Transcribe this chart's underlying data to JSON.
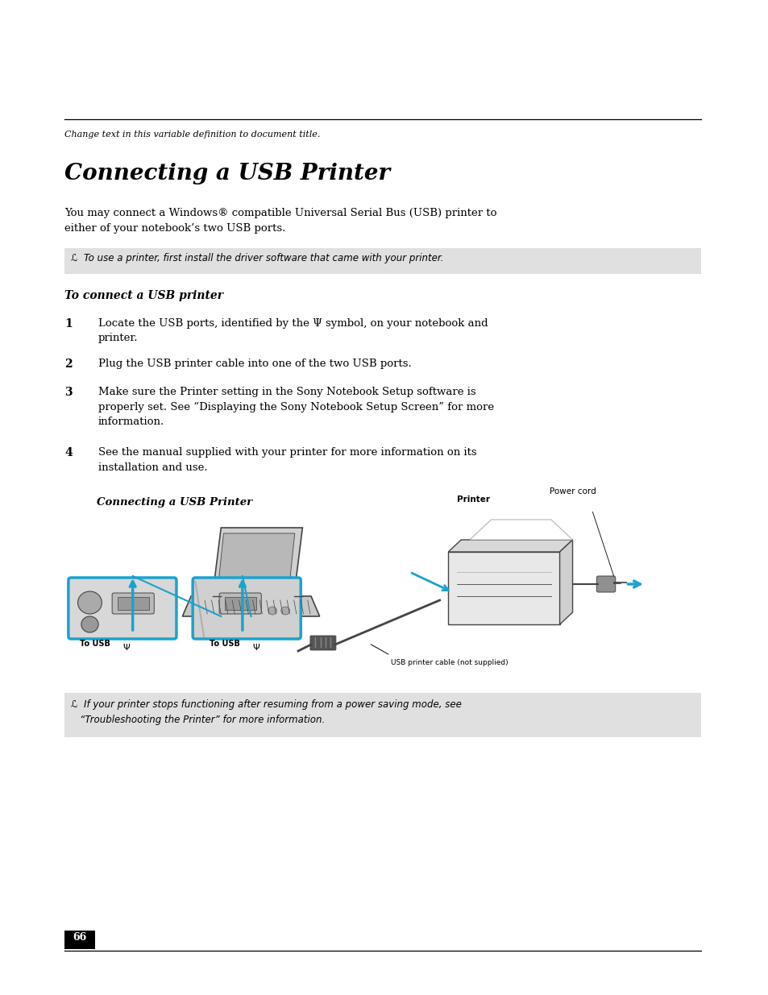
{
  "bg_color": "#ffffff",
  "header_italic_text": "Change text in this variable definition to document title.",
  "title": "Connecting a USB Printer",
  "body_text1": "You may connect a Windows® compatible Universal Serial Bus (USB) printer to\neither of your notebook’s two USB ports.",
  "note_box1_text": "ℒ  To use a printer, first install the driver software that came with your printer.",
  "note_box1_bg": "#e0e0e0",
  "subhead_text": "To connect a USB printer",
  "step1_num": "1",
  "step1_text": "Locate the USB ports, identified by the Ψ symbol, on your notebook and\nprinter.",
  "step2_num": "2",
  "step2_text": "Plug the USB printer cable into one of the two USB ports.",
  "step3_num": "3",
  "step3_text": "Make sure the Printer setting in the Sony Notebook Setup software is\nproperly set. See “Displaying the Sony Notebook Setup Screen” for more\ninformation.",
  "step4_num": "4",
  "step4_text": "See the manual supplied with your printer for more information on its\ninstallation and use.",
  "diagram_caption": "Connecting a USB Printer",
  "note_box2_text": "ℒ  If your printer stops functioning after resuming from a power saving mode, see\n   “Troubleshooting the Printer” for more information.",
  "note_box2_bg": "#e0e0e0",
  "page_num": "66",
  "cyan_color": "#1aa3cc",
  "text_color": "#000000",
  "line_color": "#333333"
}
